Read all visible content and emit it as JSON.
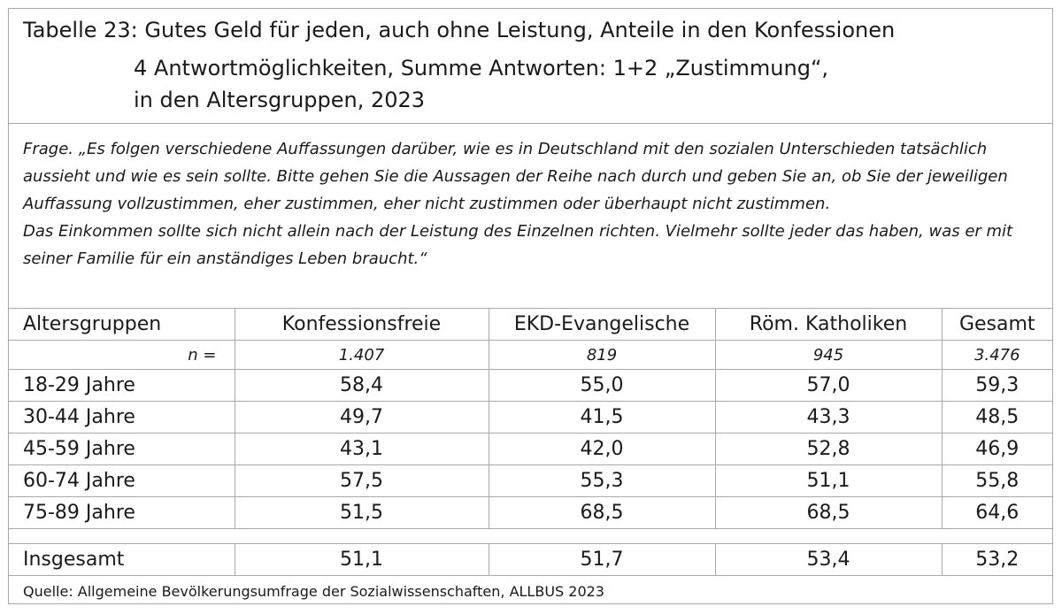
{
  "title": {
    "line1": "Tabelle 23: Gutes Geld für jeden, auch ohne Leistung, Anteile in den Konfessionen",
    "line2": "4 Antwortmöglichkeiten, Summe Antworten: 1+2 „Zustimmung“,",
    "line3": "in den Altersgruppen, 2023"
  },
  "question": {
    "paragraph1": "Frage. „Es folgen verschiedene Auffassungen darüber, wie es in Deutschland mit den sozialen Unterschieden tatsächlich aussieht und wie es sein sollte. Bitte gehen Sie die Aussagen der Reihe nach durch und geben Sie an, ob Sie der jeweiligen Auffassung vollzustimmen, eher zustimmen, eher nicht zustimmen oder überhaupt nicht zustimmen.",
    "paragraph2": "Das Einkommen sollte sich nicht allein nach der Leistung des Einzelnen richten. Vielmehr sollte jeder das haben, was er mit seiner Familie für ein anständiges Leben braucht.“"
  },
  "table": {
    "headers": [
      "Altersgruppen",
      "Konfessionsfreie",
      "EKD-Evangelische",
      "Röm. Katholiken",
      "Gesamt"
    ],
    "n_row": [
      "n =",
      "1.407",
      "819",
      "945",
      "3.476"
    ],
    "rows": [
      [
        "18-29 Jahre",
        "58,4",
        "55,0",
        "57,0",
        "59,3"
      ],
      [
        "30-44 Jahre",
        "49,7",
        "41,5",
        "43,3",
        "48,5"
      ],
      [
        "45-59 Jahre",
        "43,1",
        "42,0",
        "52,8",
        "46,9"
      ],
      [
        "60-74 Jahre",
        "57,5",
        "55,3",
        "51,1",
        "55,8"
      ],
      [
        "75-89 Jahre",
        "51,5",
        "68,5",
        "68,5",
        "64,6"
      ]
    ],
    "total": [
      "Insgesamt",
      "51,1",
      "51,7",
      "53,4",
      "53,2"
    ]
  },
  "source": "Quelle: Allgemeine Bevölkerungsumfrage der Sozialwissenschaften, ALLBUS 2023"
}
